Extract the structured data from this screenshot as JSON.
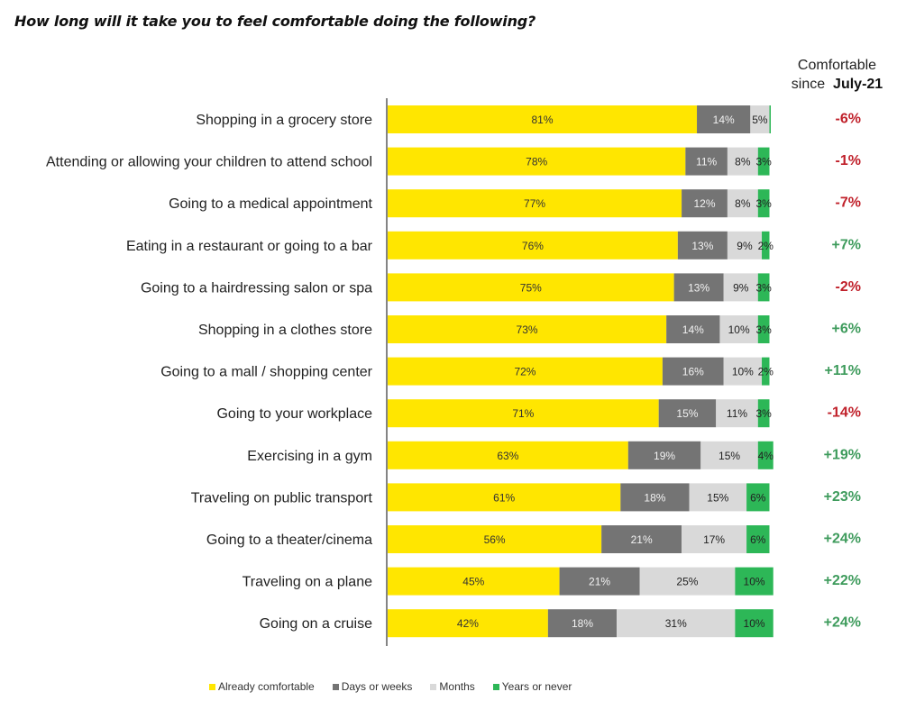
{
  "chart_data": {
    "type": "bar",
    "orientation": "horizontal",
    "stacked": true,
    "title": "How long will it take you to feel comfortable doing the following?",
    "xlabel": "",
    "ylabel": "",
    "xlim": [
      0,
      100
    ],
    "grid": false,
    "legend_position": "bottom",
    "categories": [
      "Shopping in a grocery store",
      "Attending or allowing your children to attend school",
      "Going to a medical appointment",
      "Eating in a restaurant or going to a bar",
      "Going to a hairdressing salon or spa",
      "Shopping in a clothes store",
      "Going to a mall / shopping center",
      "Going to your workplace",
      "Exercising in a gym",
      "Traveling on public transport",
      "Going to a theater/cinema",
      "Traveling on a plane",
      "Going on a cruise"
    ],
    "series": [
      {
        "name": "Already comfortable",
        "color": "#FFE600",
        "label_color": "#333333",
        "values": [
          81,
          78,
          77,
          76,
          75,
          73,
          72,
          71,
          63,
          61,
          56,
          45,
          42
        ]
      },
      {
        "name": "Days or weeks",
        "color": "#747474",
        "label_color": "#F2F2F2",
        "values": [
          14,
          11,
          12,
          13,
          13,
          14,
          16,
          15,
          19,
          18,
          21,
          21,
          18
        ]
      },
      {
        "name": "Months",
        "color": "#D9D9D9",
        "label_color": "#222222",
        "values": [
          5,
          8,
          8,
          9,
          9,
          10,
          10,
          11,
          15,
          15,
          17,
          25,
          31
        ]
      },
      {
        "name": "Years or never",
        "color": "#2DB757",
        "label_color": "#222222",
        "values": [
          0,
          3,
          3,
          2,
          3,
          3,
          2,
          3,
          4,
          6,
          6,
          10,
          10
        ]
      }
    ],
    "hidden_labels": [
      [
        3,
        0
      ]
    ],
    "side_column": {
      "header_line1": "Comfortable",
      "header_line2_prefix": "since",
      "header_line2_bold": "July-21",
      "values": [
        "-6%",
        "-1%",
        "-7%",
        "+7%",
        "-2%",
        "+6%",
        "+11%",
        "-14%",
        "+19%",
        "+23%",
        "+24%",
        "+22%",
        "+24%"
      ],
      "positive_color": "#3E9B5C",
      "negative_color": "#C0202A"
    }
  }
}
